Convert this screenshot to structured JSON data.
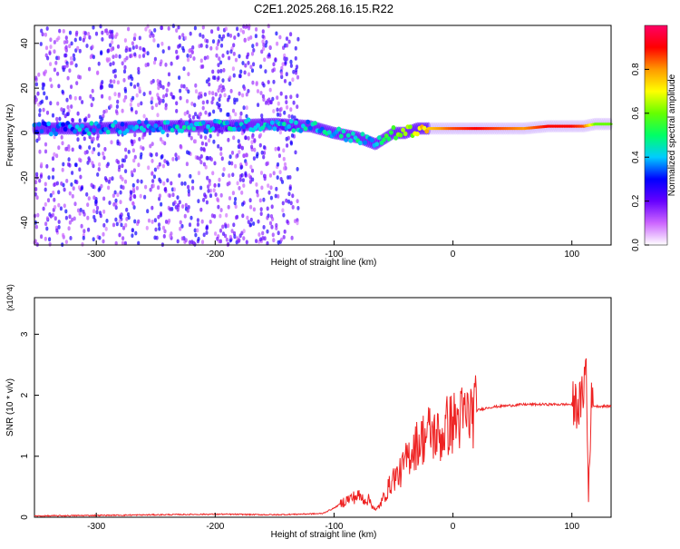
{
  "title": "C2E1.2025.268.16.15.R22",
  "chart_data": [
    {
      "type": "heatmap",
      "title": "C2E1.2025.268.16.15.R22",
      "xlabel": "Height of straight line (km)",
      "ylabel": "Frequency (Hz)",
      "xlim": [
        -352,
        133
      ],
      "ylim": [
        -50,
        48
      ],
      "x_ticks": [
        -300,
        -200,
        -100,
        0,
        100
      ],
      "y_ticks": [
        -40,
        -20,
        0,
        20,
        40
      ],
      "colorbar": {
        "label": "Normalized spectral amplitude",
        "range": [
          0,
          1
        ],
        "ticks": [
          "0.0",
          "0.2",
          "0.4",
          "0.6",
          "0.8"
        ],
        "colors": [
          "#ffffff",
          "#cc66ff",
          "#6600ff",
          "#0000ff",
          "#00ccff",
          "#00ff66",
          "#66ff00",
          "#ffff00",
          "#ff9900",
          "#ff0000",
          "#ff0066"
        ]
      },
      "ridge": {
        "x": [
          -352,
          -300,
          -250,
          -200,
          -150,
          -120,
          -100,
          -80,
          -65,
          -50,
          -40,
          -30,
          -20,
          -10,
          0,
          20,
          40,
          60,
          80,
          100,
          110,
          120,
          133
        ],
        "freq": [
          2,
          2,
          3,
          3,
          4,
          3,
          0,
          -2,
          -5,
          0,
          0,
          2,
          2,
          2,
          2,
          2,
          2,
          2,
          3,
          3,
          3,
          4,
          4
        ],
        "amplitude": [
          0.35,
          0.38,
          0.4,
          0.42,
          0.4,
          0.4,
          0.42,
          0.45,
          0.4,
          0.55,
          0.6,
          0.7,
          0.75,
          0.8,
          0.85,
          0.9,
          0.85,
          0.8,
          0.9,
          0.9,
          0.85,
          0.6,
          0.6
        ]
      },
      "scatter_region_xmax": -130
    },
    {
      "type": "line",
      "xlabel": "Height of straight line (km)",
      "ylabel": "SNR (10 * v/v)",
      "y_multiplier": "(x10^4)",
      "xlim": [
        -352,
        133
      ],
      "ylim": [
        0,
        3.6
      ],
      "x_ticks": [
        -300,
        -200,
        -100,
        0,
        100
      ],
      "y_ticks": [
        0,
        1,
        2,
        3
      ],
      "series": [
        {
          "color": "#ee2222",
          "x": [
            -352,
            -300,
            -250,
            -200,
            -150,
            -110,
            -100,
            -90,
            -80,
            -75,
            -70,
            -65,
            -60,
            -55,
            -50,
            -45,
            -40,
            -35,
            -30,
            -25,
            -20,
            -15,
            -10,
            -5,
            0,
            5,
            10,
            20,
            30,
            40,
            60,
            80,
            100,
            108,
            112,
            114,
            116,
            120,
            133
          ],
          "y": [
            0.02,
            0.03,
            0.04,
            0.05,
            0.04,
            0.06,
            0.15,
            0.28,
            0.35,
            0.3,
            0.28,
            0.1,
            0.25,
            0.45,
            0.65,
            0.7,
            0.9,
            1.1,
            1.2,
            1.3,
            1.4,
            1.35,
            1.3,
            1.5,
            1.55,
            1.6,
            1.65,
            1.75,
            1.8,
            1.82,
            1.85,
            1.85,
            1.85,
            1.85,
            2.5,
            0.3,
            1.85,
            1.82,
            1.82
          ]
        }
      ]
    }
  ]
}
